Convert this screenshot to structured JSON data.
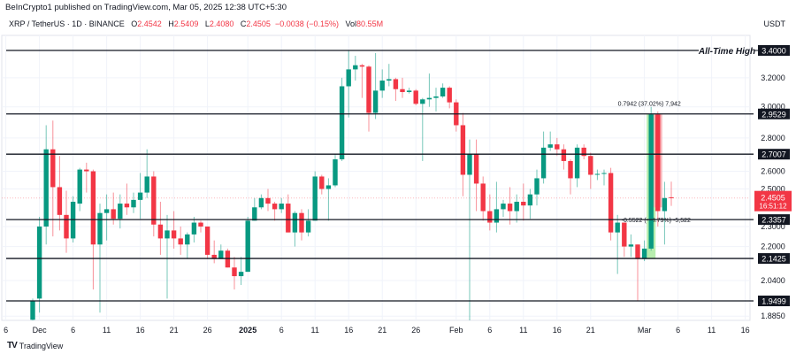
{
  "header": {
    "published": "BeInCrypto1 published on TradingView.com, Mar 05, 2025 12:38 UTC+5:30",
    "symbol": "XRP / TetherUS · 1D · BINANCE",
    "o_label": "O",
    "o": "2.4542",
    "h_label": "H",
    "h": "2.5409",
    "l_label": "L",
    "l": "2.4080",
    "c_label": "C",
    "c": "2.4505",
    "change": "−0.0038 (−0.15%)",
    "vol_label": "Vol",
    "vol": "80.55M",
    "currency": "USDT"
  },
  "footer": {
    "logo": "TradingView",
    "logo_icon": "tradingview-logo-icon"
  },
  "colors": {
    "up": "#089981",
    "down": "#f23645",
    "level_line": "#131722",
    "grid": "#f0f3fa"
  },
  "chart_data": {
    "type": "candlestick",
    "title": "",
    "y_scale": "log",
    "ylim": [
      1.86,
      3.45
    ],
    "grid": true,
    "price_axis_labels": [
      "3.2000",
      "3.0000",
      "2.8000",
      "2.6000",
      "2.5000",
      "2.3000",
      "2.2000",
      "2.0400",
      "1.8850"
    ],
    "x_ticks": [
      {
        "date": "2024-11-26",
        "label": "6"
      },
      {
        "date": "2024-12-01",
        "label": "Dec"
      },
      {
        "date": "2024-12-06",
        "label": "6"
      },
      {
        "date": "2024-12-11",
        "label": "11"
      },
      {
        "date": "2024-12-16",
        "label": "16"
      },
      {
        "date": "2024-12-21",
        "label": "21"
      },
      {
        "date": "2024-12-26",
        "label": "26"
      },
      {
        "date": "2025-01-01",
        "label": "2025",
        "bold": true
      },
      {
        "date": "2025-01-06",
        "label": "6"
      },
      {
        "date": "2025-01-11",
        "label": "11"
      },
      {
        "date": "2025-01-16",
        "label": "16"
      },
      {
        "date": "2025-01-21",
        "label": "21"
      },
      {
        "date": "2025-01-26",
        "label": "26"
      },
      {
        "date": "2025-02-01",
        "label": "Feb"
      },
      {
        "date": "2025-02-06",
        "label": "6"
      },
      {
        "date": "2025-02-11",
        "label": "11"
      },
      {
        "date": "2025-02-16",
        "label": "16"
      },
      {
        "date": "2025-02-21",
        "label": "21"
      },
      {
        "date": "2025-03-01",
        "label": "Mar"
      },
      {
        "date": "2025-03-06",
        "label": "6"
      },
      {
        "date": "2025-03-11",
        "label": "11"
      },
      {
        "date": "2025-03-16",
        "label": "16"
      }
    ],
    "levels": [
      {
        "price": 3.4,
        "label": "3.4000",
        "annotation": "All-Time High"
      },
      {
        "price": 2.9529,
        "label": "2.9529"
      },
      {
        "price": 2.7007,
        "label": "2.7007"
      },
      {
        "price": 2.3357,
        "label": "2.3357"
      },
      {
        "price": 2.1425,
        "label": "2.1425"
      },
      {
        "price": 1.9499,
        "label": "1.9499"
      }
    ],
    "last_price": {
      "price": 2.4505,
      "label": "2.4505",
      "countdown": "16:51:12"
    },
    "measurements": [
      {
        "from_date": "2025-03-02",
        "from": 2.14,
        "to": 2.95,
        "label": "0.7942 (37.02%) 7,942",
        "direction": "up"
      },
      {
        "from_date": "2025-03-03",
        "from": 2.95,
        "to": 2.4,
        "label": "-0.5522 (-18.79%) -5,522",
        "direction": "down"
      }
    ],
    "candles_columns": [
      "date",
      "open",
      "high",
      "low",
      "close"
    ],
    "candles": [
      [
        "2024-11-30",
        1.87,
        1.96,
        1.84,
        1.95
      ],
      [
        "2024-12-01",
        1.96,
        2.35,
        1.9,
        2.3
      ],
      [
        "2024-12-02",
        2.3,
        2.88,
        2.21,
        2.73
      ],
      [
        "2024-12-03",
        2.73,
        2.91,
        2.25,
        2.51
      ],
      [
        "2024-12-04",
        2.51,
        2.69,
        2.28,
        2.36
      ],
      [
        "2024-12-05",
        2.36,
        2.49,
        2.17,
        2.24
      ],
      [
        "2024-12-06",
        2.24,
        2.46,
        2.22,
        2.43
      ],
      [
        "2024-12-07",
        2.42,
        2.62,
        2.38,
        2.61
      ],
      [
        "2024-12-08",
        2.61,
        2.65,
        2.48,
        2.6
      ],
      [
        "2024-12-09",
        2.6,
        2.61,
        2.0,
        2.21
      ],
      [
        "2024-12-10",
        2.21,
        2.42,
        1.9,
        2.37
      ],
      [
        "2024-12-11",
        2.37,
        2.47,
        2.23,
        2.39
      ],
      [
        "2024-12-12",
        2.39,
        2.48,
        2.31,
        2.34
      ],
      [
        "2024-12-13",
        2.34,
        2.47,
        2.29,
        2.42
      ],
      [
        "2024-12-14",
        2.42,
        2.53,
        2.36,
        2.4
      ],
      [
        "2024-12-15",
        2.4,
        2.48,
        2.37,
        2.44
      ],
      [
        "2024-12-16",
        2.44,
        2.59,
        2.34,
        2.48
      ],
      [
        "2024-12-17",
        2.48,
        2.73,
        2.45,
        2.57
      ],
      [
        "2024-12-18",
        2.57,
        2.6,
        2.25,
        2.31
      ],
      [
        "2024-12-19",
        2.31,
        2.43,
        2.16,
        2.24
      ],
      [
        "2024-12-20",
        2.24,
        2.36,
        1.96,
        2.28
      ],
      [
        "2024-12-21",
        2.28,
        2.38,
        2.19,
        2.24
      ],
      [
        "2024-12-22",
        2.24,
        2.3,
        2.16,
        2.21
      ],
      [
        "2024-12-23",
        2.21,
        2.27,
        2.14,
        2.26
      ],
      [
        "2024-12-24",
        2.26,
        2.35,
        2.22,
        2.32
      ],
      [
        "2024-12-25",
        2.32,
        2.33,
        2.27,
        2.3
      ],
      [
        "2024-12-26",
        2.3,
        2.3,
        2.14,
        2.16
      ],
      [
        "2024-12-27",
        2.16,
        2.23,
        2.12,
        2.14
      ],
      [
        "2024-12-28",
        2.14,
        2.21,
        2.14,
        2.18
      ],
      [
        "2024-12-29",
        2.18,
        2.19,
        2.1,
        2.1
      ],
      [
        "2024-12-30",
        2.1,
        2.15,
        2.0,
        2.06
      ],
      [
        "2024-12-31",
        2.06,
        2.15,
        2.02,
        2.08
      ],
      [
        "2025-01-01",
        2.08,
        2.35,
        2.08,
        2.33
      ],
      [
        "2025-01-02",
        2.33,
        2.45,
        2.33,
        2.4
      ],
      [
        "2025-01-03",
        2.4,
        2.47,
        2.39,
        2.45
      ],
      [
        "2025-01-04",
        2.45,
        2.5,
        2.38,
        2.42
      ],
      [
        "2025-01-05",
        2.42,
        2.43,
        2.33,
        2.39
      ],
      [
        "2025-01-06",
        2.39,
        2.45,
        2.37,
        2.42
      ],
      [
        "2025-01-07",
        2.42,
        2.47,
        2.27,
        2.27
      ],
      [
        "2025-01-08",
        2.27,
        2.38,
        2.2,
        2.37
      ],
      [
        "2025-01-09",
        2.37,
        2.39,
        2.23,
        2.27
      ],
      [
        "2025-01-10",
        2.27,
        2.39,
        2.25,
        2.33
      ],
      [
        "2025-01-11",
        2.33,
        2.6,
        2.33,
        2.57
      ],
      [
        "2025-01-12",
        2.57,
        2.58,
        2.47,
        2.5
      ],
      [
        "2025-01-13",
        2.5,
        2.56,
        2.33,
        2.52
      ],
      [
        "2025-01-14",
        2.52,
        2.7,
        2.51,
        2.67
      ],
      [
        "2025-01-15",
        2.67,
        3.2,
        2.66,
        3.14
      ],
      [
        "2025-01-16",
        3.14,
        3.4,
        2.93,
        3.26
      ],
      [
        "2025-01-17",
        3.26,
        3.36,
        3.18,
        3.29
      ],
      [
        "2025-01-18",
        3.29,
        3.3,
        3.06,
        3.28
      ],
      [
        "2025-01-19",
        3.28,
        3.29,
        2.84,
        2.96
      ],
      [
        "2025-01-20",
        2.96,
        3.38,
        2.92,
        3.11
      ],
      [
        "2025-01-21",
        3.11,
        3.26,
        3.06,
        3.18
      ],
      [
        "2025-01-22",
        3.18,
        3.3,
        3.14,
        3.19
      ],
      [
        "2025-01-23",
        3.19,
        3.2,
        3.04,
        3.12
      ],
      [
        "2025-01-24",
        3.12,
        3.2,
        3.06,
        3.1
      ],
      [
        "2025-01-25",
        3.1,
        3.13,
        3.09,
        3.11
      ],
      [
        "2025-01-26",
        3.11,
        3.12,
        3.01,
        3.02
      ],
      [
        "2025-01-27",
        3.02,
        3.06,
        2.66,
        3.05
      ],
      [
        "2025-01-28",
        3.05,
        3.23,
        3.0,
        3.06
      ],
      [
        "2025-01-29",
        3.06,
        3.13,
        2.97,
        3.07
      ],
      [
        "2025-01-30",
        3.07,
        3.16,
        3.06,
        3.13
      ],
      [
        "2025-01-31",
        3.13,
        3.14,
        2.99,
        3.03
      ],
      [
        "2025-02-01",
        3.03,
        3.05,
        2.84,
        2.88
      ],
      [
        "2025-02-02",
        2.88,
        2.96,
        2.46,
        2.58
      ],
      [
        "2025-02-03",
        2.58,
        2.79,
        1.77,
        2.7
      ],
      [
        "2025-02-04",
        2.7,
        2.79,
        2.38,
        2.53
      ],
      [
        "2025-02-05",
        2.53,
        2.57,
        2.33,
        2.38
      ],
      [
        "2025-02-06",
        2.38,
        2.47,
        2.28,
        2.32
      ],
      [
        "2025-02-07",
        2.32,
        2.54,
        2.27,
        2.39
      ],
      [
        "2025-02-08",
        2.39,
        2.44,
        2.35,
        2.42
      ],
      [
        "2025-02-09",
        2.42,
        2.51,
        2.31,
        2.38
      ],
      [
        "2025-02-10",
        2.38,
        2.47,
        2.32,
        2.43
      ],
      [
        "2025-02-11",
        2.43,
        2.53,
        2.33,
        2.41
      ],
      [
        "2025-02-12",
        2.41,
        2.5,
        2.34,
        2.47
      ],
      [
        "2025-02-13",
        2.47,
        2.61,
        2.41,
        2.56
      ],
      [
        "2025-02-14",
        2.56,
        2.84,
        2.53,
        2.74
      ],
      [
        "2025-02-15",
        2.74,
        2.84,
        2.72,
        2.76
      ],
      [
        "2025-02-16",
        2.76,
        2.8,
        2.69,
        2.73
      ],
      [
        "2025-02-17",
        2.73,
        2.76,
        2.61,
        2.66
      ],
      [
        "2025-02-18",
        2.66,
        2.67,
        2.47,
        2.56
      ],
      [
        "2025-02-19",
        2.56,
        2.76,
        2.51,
        2.74
      ],
      [
        "2025-02-20",
        2.74,
        2.76,
        2.67,
        2.69
      ],
      [
        "2025-02-21",
        2.69,
        2.71,
        2.5,
        2.58
      ],
      [
        "2025-02-22",
        2.58,
        2.61,
        2.55,
        2.585
      ],
      [
        "2025-02-23",
        2.585,
        2.61,
        2.52,
        2.59
      ],
      [
        "2025-02-24",
        2.59,
        2.62,
        2.23,
        2.27
      ],
      [
        "2025-02-25",
        2.27,
        2.36,
        2.07,
        2.32
      ],
      [
        "2025-02-26",
        2.32,
        2.32,
        2.15,
        2.2
      ],
      [
        "2025-02-27",
        2.2,
        2.26,
        2.15,
        2.21
      ],
      [
        "2025-02-28",
        2.21,
        2.21,
        1.95,
        2.14
      ],
      [
        "2025-03-01",
        2.14,
        2.23,
        2.13,
        2.19
      ],
      [
        "2025-03-02",
        2.19,
        3.0,
        2.18,
        2.95
      ],
      [
        "2025-03-03",
        2.95,
        2.97,
        2.3,
        2.38
      ],
      [
        "2025-03-04",
        2.38,
        2.54,
        2.21,
        2.45
      ],
      [
        "2025-03-05",
        2.4542,
        2.5409,
        2.408,
        2.4505
      ]
    ]
  }
}
